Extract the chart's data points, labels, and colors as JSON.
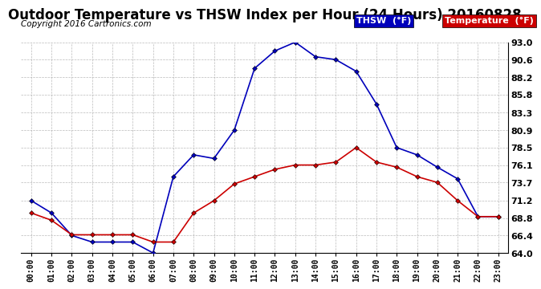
{
  "title": "Outdoor Temperature vs THSW Index per Hour (24 Hours) 20160828",
  "copyright": "Copyright 2016 Cartronics.com",
  "legend_thsw": "THSW  (°F)",
  "legend_temp": "Temperature  (°F)",
  "hours": [
    "00:00",
    "01:00",
    "02:00",
    "03:00",
    "04:00",
    "05:00",
    "06:00",
    "07:00",
    "08:00",
    "09:00",
    "10:00",
    "11:00",
    "12:00",
    "13:00",
    "14:00",
    "15:00",
    "16:00",
    "17:00",
    "18:00",
    "19:00",
    "20:00",
    "21:00",
    "22:00",
    "23:00"
  ],
  "thsw": [
    71.2,
    69.5,
    66.4,
    65.5,
    65.5,
    65.5,
    64.0,
    74.5,
    77.5,
    77.0,
    80.9,
    89.4,
    91.8,
    93.0,
    91.0,
    90.6,
    89.0,
    84.5,
    78.5,
    77.5,
    75.8,
    74.2,
    69.0,
    69.0
  ],
  "temperature": [
    69.5,
    68.5,
    66.5,
    66.5,
    66.5,
    66.5,
    65.5,
    65.5,
    69.5,
    71.2,
    73.5,
    74.5,
    75.5,
    76.1,
    76.1,
    76.5,
    78.5,
    76.5,
    75.8,
    74.5,
    73.7,
    71.2,
    69.0,
    69.0
  ],
  "ylim_min": 64.0,
  "ylim_max": 93.0,
  "yticks": [
    64.0,
    66.4,
    68.8,
    71.2,
    73.7,
    76.1,
    78.5,
    80.9,
    83.3,
    85.8,
    88.2,
    90.6,
    93.0
  ],
  "thsw_color": "#0000bb",
  "temp_color": "#cc0000",
  "bg_color": "#ffffff",
  "grid_color": "#aaaaaa",
  "title_fontsize": 12,
  "copyright_fontsize": 7.5
}
